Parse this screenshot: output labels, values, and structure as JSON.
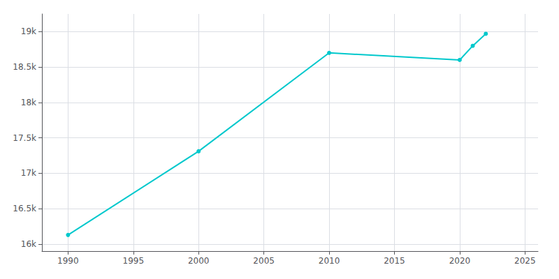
{
  "chart_data": {
    "type": "line",
    "x": [
      1990,
      2000,
      2010,
      2020,
      2021,
      2022
    ],
    "values": [
      16128,
      17310,
      18700,
      18600,
      18800,
      18970
    ],
    "color": "#00c8cc",
    "marker": "circle",
    "xlim": [
      1988,
      2026
    ],
    "ylim": [
      15900,
      19250
    ],
    "xticks": [
      1990,
      1995,
      2000,
      2005,
      2010,
      2015,
      2020,
      2025
    ],
    "yticks": [
      {
        "value": 16000,
        "label": "16k"
      },
      {
        "value": 16500,
        "label": "16.5k"
      },
      {
        "value": 17000,
        "label": "17k"
      },
      {
        "value": 17500,
        "label": "17.5k"
      },
      {
        "value": 18000,
        "label": "18k"
      },
      {
        "value": 18500,
        "label": "18.5k"
      },
      {
        "value": 19000,
        "label": "19k"
      }
    ],
    "grid": true
  }
}
